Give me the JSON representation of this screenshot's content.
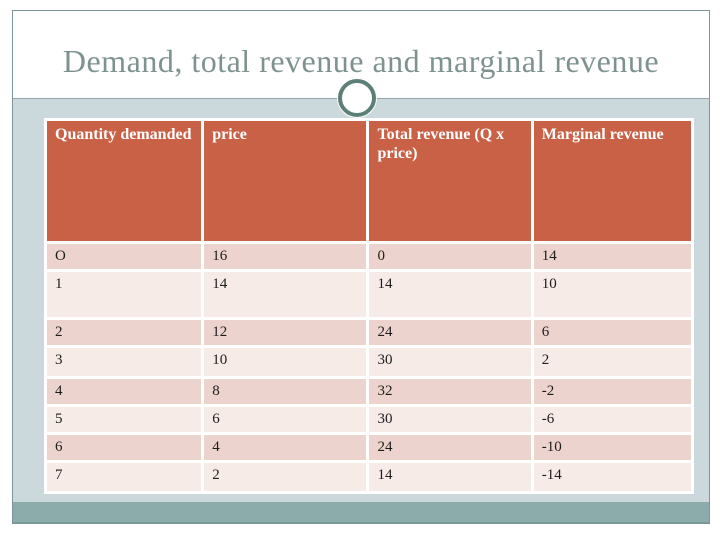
{
  "slide": {
    "title": "Demand, total revenue and marginal revenue"
  },
  "table": {
    "headers": [
      "Quantity demanded",
      "price",
      "Total revenue (Q x price)",
      "Marginal revenue"
    ],
    "rows": [
      [
        "O",
        "16",
        "0",
        "14"
      ],
      [
        "1",
        "14",
        "14",
        "10"
      ],
      [
        "2",
        "12",
        "24",
        "6"
      ],
      [
        "3",
        "10",
        "30",
        "2"
      ],
      [
        "4",
        "8",
        "32",
        "-2"
      ],
      [
        "5",
        "6",
        "30",
        "-6"
      ],
      [
        "6",
        "4",
        "24",
        "-10"
      ],
      [
        "7",
        "2",
        "14",
        "-14"
      ]
    ]
  },
  "colors": {
    "header_bg": "#c96147",
    "row_dark": "#edd3cd",
    "row_light": "#f7ebe8",
    "band_bg": "#ccd9dc",
    "footer_bg": "#8cacac",
    "title_text": "#7e938f",
    "ring_accent": "#5c8077",
    "divider": "#93a5a7"
  }
}
